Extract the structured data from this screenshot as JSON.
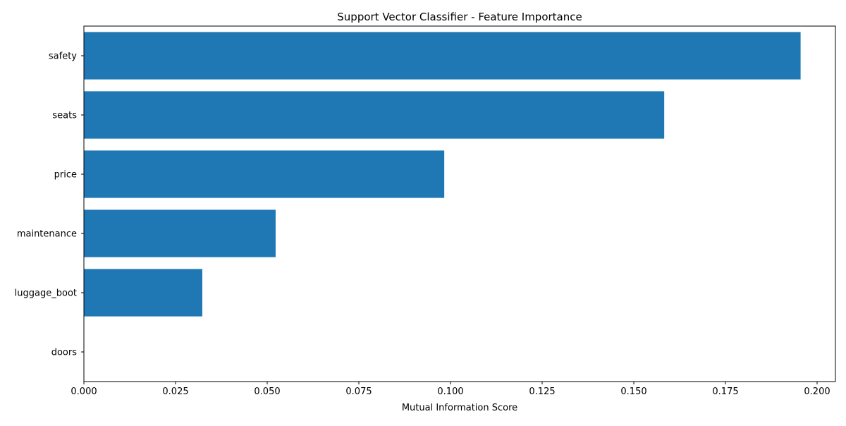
{
  "chart_data": {
    "type": "bar",
    "orientation": "horizontal",
    "title": "Support Vector Classifier - Feature Importance",
    "xlabel": "Mutual Information Score",
    "ylabel": "",
    "categories": [
      "safety",
      "seats",
      "price",
      "maintenance",
      "luggage_boot",
      "doors"
    ],
    "values": [
      0.1955,
      0.1583,
      0.0983,
      0.0523,
      0.0323,
      0.0
    ],
    "xlim": [
      0.0,
      0.205
    ],
    "xticks": [
      0.0,
      0.025,
      0.05,
      0.075,
      0.1,
      0.125,
      0.15,
      0.175,
      0.2
    ],
    "xtick_labels": [
      "0.000",
      "0.025",
      "0.050",
      "0.075",
      "0.100",
      "0.125",
      "0.150",
      "0.175",
      "0.200"
    ],
    "grid": false,
    "bar_color": "#1f77b4"
  }
}
